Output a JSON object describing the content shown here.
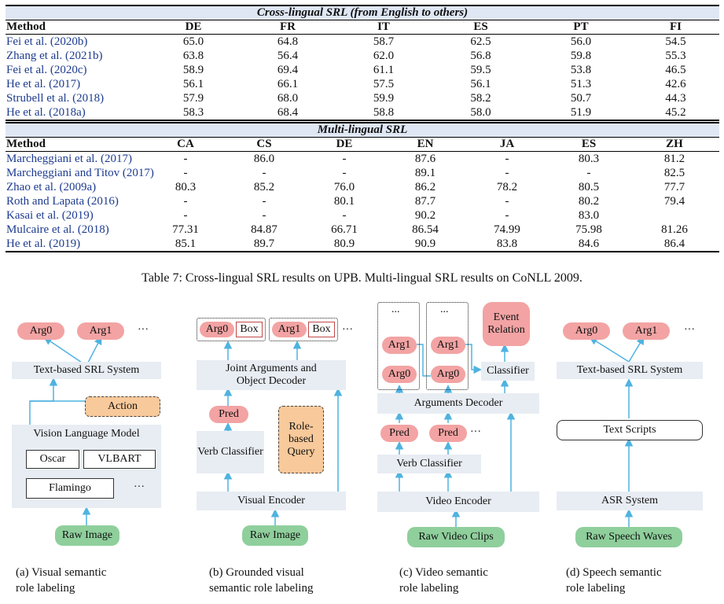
{
  "table1": {
    "title": "Cross-lingual SRL (from English to others)",
    "headers": [
      "Method",
      "DE",
      "FR",
      "IT",
      "ES",
      "PT",
      "FI"
    ],
    "rows": [
      [
        "Fei et al. (2020b)",
        "65.0",
        "64.8",
        "58.7",
        "62.5",
        "56.0",
        "54.5"
      ],
      [
        "Zhang et al. (2021b)",
        "63.8",
        "56.4",
        "62.0",
        "56.8",
        "59.8",
        "55.3"
      ],
      [
        "Fei et al. (2020c)",
        "58.9",
        "69.4",
        "61.1",
        "59.5",
        "53.8",
        "46.5"
      ],
      [
        "He et al. (2017)",
        "56.1",
        "66.1",
        "57.5",
        "56.1",
        "51.3",
        "42.6"
      ],
      [
        "Strubell et al. (2018)",
        "57.9",
        "68.0",
        "59.9",
        "58.2",
        "50.7",
        "44.3"
      ],
      [
        "He et al. (2018a)",
        "58.3",
        "68.4",
        "58.8",
        "58.0",
        "51.9",
        "45.2"
      ]
    ]
  },
  "table2": {
    "title": "Multi-lingual SRL",
    "headers": [
      "Method",
      "CA",
      "CS",
      "DE",
      "EN",
      "JA",
      "ES",
      "ZH"
    ],
    "rows": [
      [
        "Marcheggiani et al. (2017)",
        "-",
        "86.0",
        "-",
        "87.6",
        "-",
        "80.3",
        "81.2"
      ],
      [
        "Marcheggiani and Titov (2017)",
        "-",
        "-",
        "-",
        "89.1",
        "-",
        "-",
        "82.5"
      ],
      [
        "Zhao et al. (2009a)",
        "80.3",
        "85.2",
        "76.0",
        "86.2",
        "78.2",
        "80.5",
        "77.7"
      ],
      [
        "Roth and Lapata (2016)",
        "-",
        "-",
        "80.1",
        "87.7",
        "-",
        "80.2",
        "79.4"
      ],
      [
        "Kasai et al. (2019)",
        "-",
        "-",
        "-",
        "90.2",
        "-",
        "83.0",
        ""
      ],
      [
        "Mulcaire et al. (2018)",
        "77.31",
        "84.87",
        "66.71",
        "86.54",
        "74.99",
        "75.98",
        "81.26"
      ],
      [
        "He et al. (2019)",
        "85.1",
        "89.7",
        "80.9",
        "90.9",
        "83.8",
        "84.6",
        "86.4"
      ]
    ]
  },
  "caption": "Table 7: Cross-lingual SRL results on UPB. Multi-lingual SRL results on CoNLL 2009.",
  "diag_a": {
    "arg0": "Arg0",
    "arg1": "Arg1",
    "ellipsis": "···",
    "srl": "Text-based SRL System",
    "action": "Action",
    "vlm": "Vision Language Model",
    "oscar": "Oscar",
    "vlbart": "VLBART",
    "flamingo": "Flamingo",
    "ellipsis2": "···",
    "input": "Raw Image",
    "caption1": "(a) Visual semantic",
    "caption2": "role labeling"
  },
  "diag_b": {
    "arg0": "Arg0",
    "box0": "Box",
    "arg1": "Arg1",
    "box1": "Box",
    "ellipsis": "···",
    "decoder": "Joint Arguments and Object Decoder",
    "pred": "Pred",
    "query": "Role-based Query",
    "verb": "Verb Classifier",
    "encoder": "Visual Encoder",
    "input": "Raw Image",
    "caption1": "(b) Grounded visual",
    "caption2": "semantic role labeling"
  },
  "diag_c": {
    "dots1": "...",
    "dots2": "...",
    "arg1a": "Arg1",
    "arg0a": "Arg0",
    "arg1b": "Arg1",
    "arg0b": "Arg0",
    "event": "Event Relation",
    "classifier": "Classifier",
    "decoder": "Arguments Decoder",
    "pred1": "Pred",
    "pred2": "Pred",
    "ellipsis": "···",
    "verb": "Verb Classifier",
    "encoder": "Video Encoder",
    "input": "Raw Video Clips",
    "caption1": "(c) Video semantic",
    "caption2": "role labeling"
  },
  "diag_d": {
    "arg0": "Arg0",
    "arg1": "Arg1",
    "ellipsis": "···",
    "srl": "Text-based SRL System",
    "scripts": "Text Scripts",
    "asr": "ASR System",
    "input": "Raw Speech Waves",
    "caption1": "(d) Speech semantic",
    "caption2": "role labeling"
  },
  "colors": {
    "arrow": "#4fb3e0",
    "pink": "#f3a3a3",
    "green": "#8fcf9c",
    "orange": "#f8c99a",
    "box_bg": "#e8edf3",
    "method_text": "#1d3b8f"
  }
}
